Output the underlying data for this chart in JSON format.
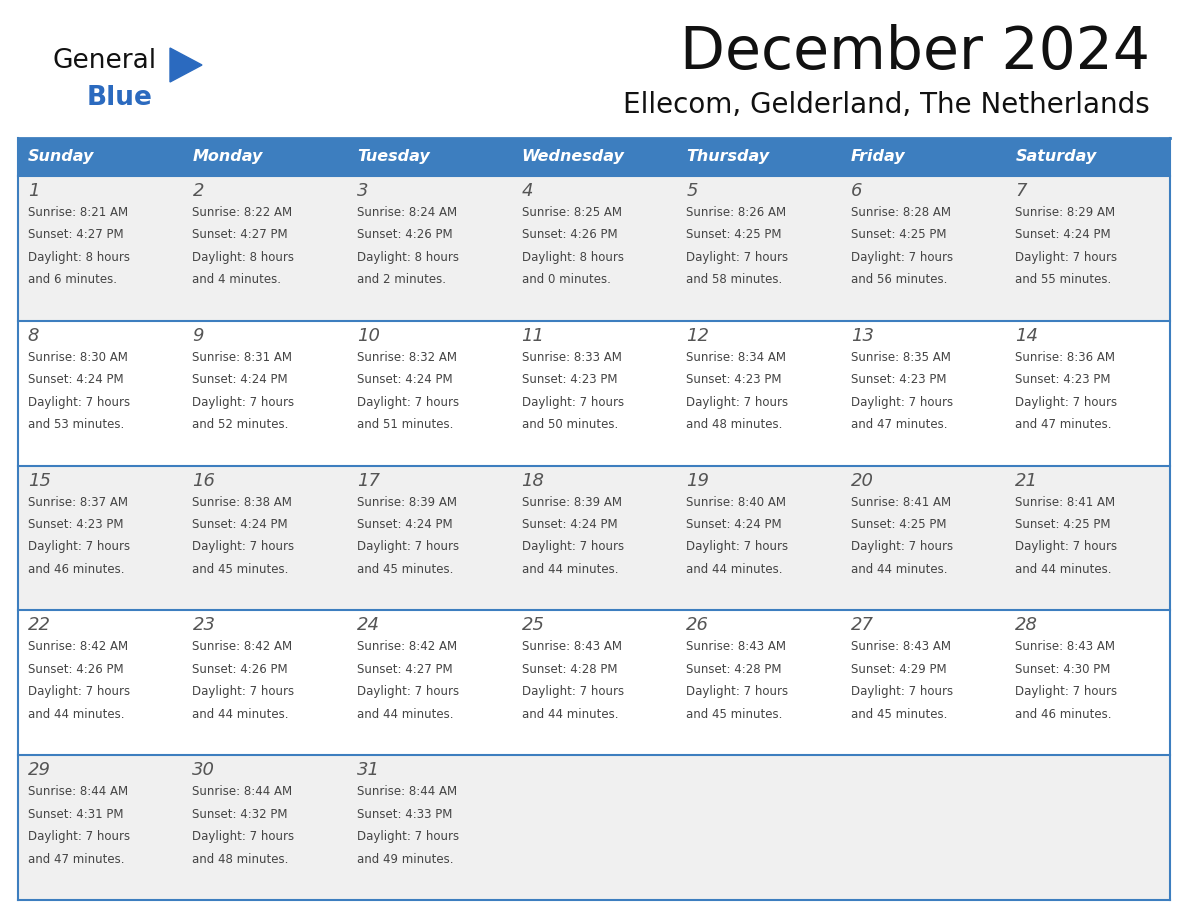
{
  "title": "December 2024",
  "subtitle": "Ellecom, Gelderland, The Netherlands",
  "header_color": "#3d7ebf",
  "header_text_color": "#ffffff",
  "cell_bg_light": "#f0f0f0",
  "cell_bg_white": "#ffffff",
  "border_color": "#3d7ebf",
  "text_color": "#444444",
  "day_number_color": "#555555",
  "logo_blue": "#2b6abf",
  "logo_black": "#111111",
  "days_of_week": [
    "Sunday",
    "Monday",
    "Tuesday",
    "Wednesday",
    "Thursday",
    "Friday",
    "Saturday"
  ],
  "weeks": [
    [
      {
        "day": 1,
        "sunrise": "8:21 AM",
        "sunset": "4:27 PM",
        "daylight_hours": 8,
        "daylight_minutes": 6
      },
      {
        "day": 2,
        "sunrise": "8:22 AM",
        "sunset": "4:27 PM",
        "daylight_hours": 8,
        "daylight_minutes": 4
      },
      {
        "day": 3,
        "sunrise": "8:24 AM",
        "sunset": "4:26 PM",
        "daylight_hours": 8,
        "daylight_minutes": 2
      },
      {
        "day": 4,
        "sunrise": "8:25 AM",
        "sunset": "4:26 PM",
        "daylight_hours": 8,
        "daylight_minutes": 0
      },
      {
        "day": 5,
        "sunrise": "8:26 AM",
        "sunset": "4:25 PM",
        "daylight_hours": 7,
        "daylight_minutes": 58
      },
      {
        "day": 6,
        "sunrise": "8:28 AM",
        "sunset": "4:25 PM",
        "daylight_hours": 7,
        "daylight_minutes": 56
      },
      {
        "day": 7,
        "sunrise": "8:29 AM",
        "sunset": "4:24 PM",
        "daylight_hours": 7,
        "daylight_minutes": 55
      }
    ],
    [
      {
        "day": 8,
        "sunrise": "8:30 AM",
        "sunset": "4:24 PM",
        "daylight_hours": 7,
        "daylight_minutes": 53
      },
      {
        "day": 9,
        "sunrise": "8:31 AM",
        "sunset": "4:24 PM",
        "daylight_hours": 7,
        "daylight_minutes": 52
      },
      {
        "day": 10,
        "sunrise": "8:32 AM",
        "sunset": "4:24 PM",
        "daylight_hours": 7,
        "daylight_minutes": 51
      },
      {
        "day": 11,
        "sunrise": "8:33 AM",
        "sunset": "4:23 PM",
        "daylight_hours": 7,
        "daylight_minutes": 50
      },
      {
        "day": 12,
        "sunrise": "8:34 AM",
        "sunset": "4:23 PM",
        "daylight_hours": 7,
        "daylight_minutes": 48
      },
      {
        "day": 13,
        "sunrise": "8:35 AM",
        "sunset": "4:23 PM",
        "daylight_hours": 7,
        "daylight_minutes": 47
      },
      {
        "day": 14,
        "sunrise": "8:36 AM",
        "sunset": "4:23 PM",
        "daylight_hours": 7,
        "daylight_minutes": 47
      }
    ],
    [
      {
        "day": 15,
        "sunrise": "8:37 AM",
        "sunset": "4:23 PM",
        "daylight_hours": 7,
        "daylight_minutes": 46
      },
      {
        "day": 16,
        "sunrise": "8:38 AM",
        "sunset": "4:24 PM",
        "daylight_hours": 7,
        "daylight_minutes": 45
      },
      {
        "day": 17,
        "sunrise": "8:39 AM",
        "sunset": "4:24 PM",
        "daylight_hours": 7,
        "daylight_minutes": 45
      },
      {
        "day": 18,
        "sunrise": "8:39 AM",
        "sunset": "4:24 PM",
        "daylight_hours": 7,
        "daylight_minutes": 44
      },
      {
        "day": 19,
        "sunrise": "8:40 AM",
        "sunset": "4:24 PM",
        "daylight_hours": 7,
        "daylight_minutes": 44
      },
      {
        "day": 20,
        "sunrise": "8:41 AM",
        "sunset": "4:25 PM",
        "daylight_hours": 7,
        "daylight_minutes": 44
      },
      {
        "day": 21,
        "sunrise": "8:41 AM",
        "sunset": "4:25 PM",
        "daylight_hours": 7,
        "daylight_minutes": 44
      }
    ],
    [
      {
        "day": 22,
        "sunrise": "8:42 AM",
        "sunset": "4:26 PM",
        "daylight_hours": 7,
        "daylight_minutes": 44
      },
      {
        "day": 23,
        "sunrise": "8:42 AM",
        "sunset": "4:26 PM",
        "daylight_hours": 7,
        "daylight_minutes": 44
      },
      {
        "day": 24,
        "sunrise": "8:42 AM",
        "sunset": "4:27 PM",
        "daylight_hours": 7,
        "daylight_minutes": 44
      },
      {
        "day": 25,
        "sunrise": "8:43 AM",
        "sunset": "4:28 PM",
        "daylight_hours": 7,
        "daylight_minutes": 44
      },
      {
        "day": 26,
        "sunrise": "8:43 AM",
        "sunset": "4:28 PM",
        "daylight_hours": 7,
        "daylight_minutes": 45
      },
      {
        "day": 27,
        "sunrise": "8:43 AM",
        "sunset": "4:29 PM",
        "daylight_hours": 7,
        "daylight_minutes": 45
      },
      {
        "day": 28,
        "sunrise": "8:43 AM",
        "sunset": "4:30 PM",
        "daylight_hours": 7,
        "daylight_minutes": 46
      }
    ],
    [
      {
        "day": 29,
        "sunrise": "8:44 AM",
        "sunset": "4:31 PM",
        "daylight_hours": 7,
        "daylight_minutes": 47
      },
      {
        "day": 30,
        "sunrise": "8:44 AM",
        "sunset": "4:32 PM",
        "daylight_hours": 7,
        "daylight_minutes": 48
      },
      {
        "day": 31,
        "sunrise": "8:44 AM",
        "sunset": "4:33 PM",
        "daylight_hours": 7,
        "daylight_minutes": 49
      },
      null,
      null,
      null,
      null
    ]
  ]
}
